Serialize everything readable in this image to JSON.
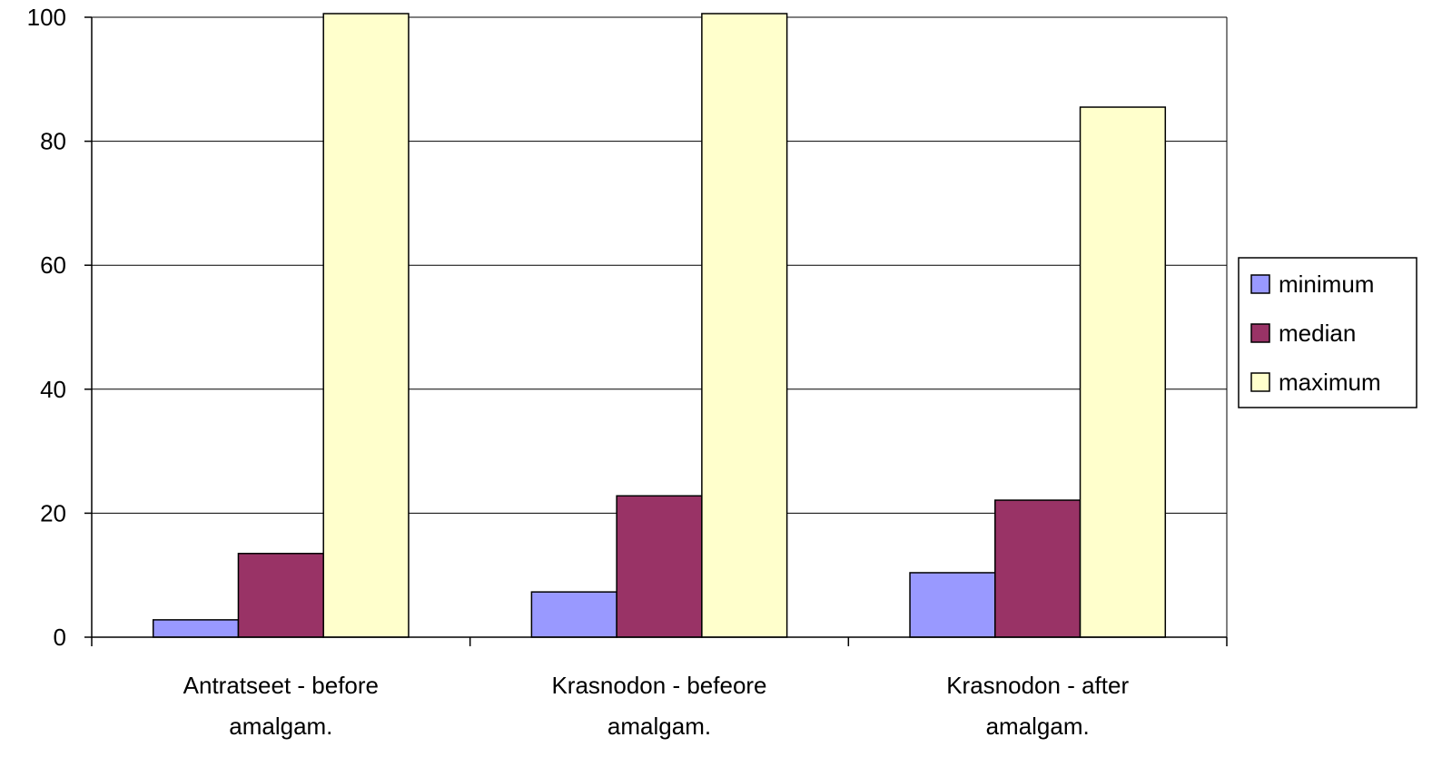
{
  "chart_data": {
    "type": "bar",
    "categories": [
      [
        "Antratseet - before",
        "amalgam."
      ],
      [
        "Krasnodon - befeore",
        "amalgam."
      ],
      [
        "Krasnodon - after",
        "amalgam."
      ]
    ],
    "series": [
      {
        "name": "minimum",
        "color": "#9999ff",
        "values": [
          2.8,
          7.3,
          10.4
        ]
      },
      {
        "name": "median",
        "color": "#993366",
        "values": [
          13.5,
          22.8,
          22.1
        ]
      },
      {
        "name": "maximum",
        "color": "#ffffcc",
        "values": [
          100,
          100,
          85.5
        ]
      }
    ],
    "ylim": [
      0,
      100
    ],
    "yticks": [
      0,
      20,
      40,
      60,
      80,
      100
    ],
    "grid": true,
    "legend_position": "right"
  }
}
